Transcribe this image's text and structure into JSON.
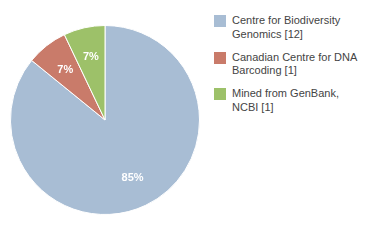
{
  "chart_data": {
    "type": "pie",
    "categories": [
      "Centre for Biodiversity\nGenomics [12]",
      "Canadian Centre for DNA\nBarcoding [1]",
      "Mined from GenBank, NCBI [1]"
    ],
    "values": [
      85,
      7,
      7
    ],
    "colors": [
      "#a8bdd4",
      "#c97b6a",
      "#9dc169"
    ],
    "data_labels": true,
    "value_labels": [
      "85%",
      "7%",
      "7%"
    ],
    "legend": "right"
  }
}
